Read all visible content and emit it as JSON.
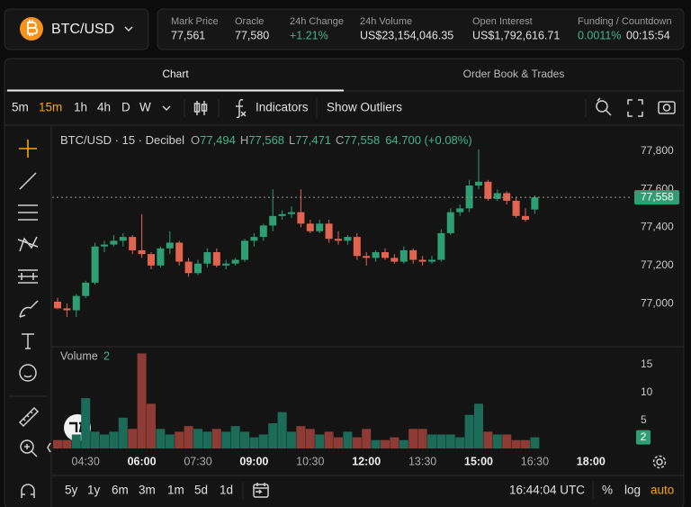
{
  "header": {
    "pair": "BTC/USD",
    "stats": [
      {
        "label": "Mark Price",
        "value": "77,561"
      },
      {
        "label": "Oracle",
        "value": "77,580"
      },
      {
        "label": "24h Change",
        "value": "+1.21%"
      },
      {
        "label": "24h Volume",
        "value": "US$23,154,046.35"
      },
      {
        "label": "Open Interest",
        "value": "US$1,792,616.71"
      },
      {
        "label": "Funding / Countdown",
        "value": "0.0011%",
        "value2": "00:15:54"
      }
    ]
  },
  "tabs": [
    "Chart",
    "Order Book & Trades"
  ],
  "toolbar": {
    "intervals": [
      "5m",
      "15m",
      "1h",
      "4h",
      "D",
      "W"
    ],
    "indicators": "Indicators",
    "outliers": "Show Outliers"
  },
  "chart_data": {
    "type": "candlestick",
    "title": "BTC/USD · 15 · Decibel",
    "legend": [
      {
        "key": "O",
        "value": "77,494"
      },
      {
        "key": "H",
        "value": "77,568"
      },
      {
        "key": "L",
        "value": "77,471"
      },
      {
        "key": "C",
        "value": "77,558"
      }
    ],
    "change": "64.700 (+0.08%)",
    "categories": [
      null,
      null,
      null,
      "04:30",
      null,
      null,
      null,
      null,
      null,
      "06:00",
      null,
      null,
      null,
      null,
      null,
      "07:30",
      null,
      null,
      null,
      null,
      null,
      "09:00",
      null,
      null,
      null,
      null,
      null,
      "10:30",
      null,
      null,
      null,
      null,
      null,
      "12:00",
      null,
      null,
      null,
      null,
      null,
      "13:30",
      null,
      null,
      null,
      null,
      null,
      "15:00",
      null,
      null,
      null,
      null,
      null,
      "16:30"
    ],
    "extra_time_labels": [
      "18:00"
    ],
    "open": [
      77010,
      76975,
      76965,
      77040,
      77110,
      77300,
      77310,
      77330,
      77350,
      77280,
      77260,
      77200,
      77290,
      77320,
      77220,
      77160,
      77210,
      77270,
      77200,
      77210,
      77230,
      77330,
      77350,
      77410,
      77460,
      77470,
      77480,
      77420,
      77380,
      77420,
      77340,
      77330,
      77350,
      77250,
      77240,
      77270,
      77240,
      77220,
      77280,
      77230,
      77220,
      77230,
      77370,
      77480,
      77500,
      77620,
      77640,
      77550,
      77580,
      77540,
      77460,
      77494
    ],
    "high": [
      77030,
      77000,
      77050,
      77120,
      77320,
      77330,
      77360,
      77370,
      77360,
      77470,
      77270,
      77300,
      77380,
      77330,
      77240,
      77230,
      77290,
      77290,
      77230,
      77240,
      77340,
      77370,
      77420,
      77600,
      77490,
      77510,
      77600,
      77440,
      77440,
      77440,
      77380,
      77360,
      77370,
      77270,
      77280,
      77290,
      77260,
      77300,
      77290,
      77250,
      77250,
      77390,
      77500,
      77520,
      77650,
      77810,
      77650,
      77600,
      77590,
      77560,
      77500,
      77568
    ],
    "low": [
      76970,
      76930,
      76930,
      77030,
      77100,
      77270,
      77300,
      77300,
      77260,
      77240,
      77180,
      77190,
      77260,
      77200,
      77140,
      77150,
      77190,
      77190,
      77180,
      77200,
      77220,
      77300,
      77330,
      77380,
      77440,
      77450,
      77400,
      77370,
      77370,
      77320,
      77310,
      77310,
      77230,
      77200,
      77220,
      77230,
      77210,
      77210,
      77210,
      77200,
      77210,
      77220,
      77360,
      77460,
      77480,
      77600,
      77540,
      77540,
      77520,
      77450,
      77430,
      77471
    ],
    "close": [
      76975,
      76965,
      77040,
      77110,
      77300,
      77310,
      77330,
      77350,
      77280,
      77260,
      77200,
      77290,
      77320,
      77220,
      77160,
      77210,
      77270,
      77200,
      77210,
      77230,
      77330,
      77350,
      77410,
      77460,
      77470,
      77480,
      77420,
      77380,
      77420,
      77340,
      77330,
      77350,
      77250,
      77240,
      77270,
      77240,
      77220,
      77280,
      77230,
      77220,
      77230,
      77370,
      77480,
      77500,
      77620,
      77640,
      77550,
      77580,
      77540,
      77460,
      77440,
      77558
    ],
    "last_price_label": "77,558",
    "volume_label": "Volume",
    "volume": [
      1.5,
      1.5,
      2.5,
      9,
      3,
      2.5,
      3,
      5.5,
      3.5,
      17,
      8,
      3.5,
      2.5,
      3,
      4,
      3.5,
      3,
      3.5,
      3,
      4,
      3,
      2,
      2.5,
      4.5,
      6.5,
      3,
      4,
      3.5,
      2.5,
      3,
      2,
      3,
      2,
      3.5,
      1.5,
      1.5,
      2,
      1.5,
      3.5,
      3.5,
      2.5,
      2.5,
      2.5,
      2,
      6,
      8,
      3,
      2.5,
      2.5,
      1.5,
      1.5,
      2
    ],
    "ylim": [
      76783,
      77885
    ],
    "yticks": [
      {
        "value": 77000,
        "label": "77,000"
      },
      {
        "value": 77200,
        "label": "77,200"
      },
      {
        "value": 77400,
        "label": "77,400"
      },
      {
        "value": 77600,
        "label": "77,600"
      },
      {
        "value": 77800,
        "label": "77,800"
      }
    ],
    "volume_ylim": [
      0,
      18.2
    ],
    "volume_ticks": [
      5,
      10,
      15
    ],
    "grid": false,
    "up_color": "#2e9e74",
    "down_color": "#e3644e",
    "volume_up_color": "#1c6b58",
    "volume_down_color": "#8e3b36"
  },
  "footer": {
    "ranges": [
      "5y",
      "1y",
      "6m",
      "3m",
      "1m",
      "5d",
      "1d"
    ],
    "clock": "16:44:04 UTC",
    "options": [
      "%",
      "log",
      "auto"
    ]
  }
}
